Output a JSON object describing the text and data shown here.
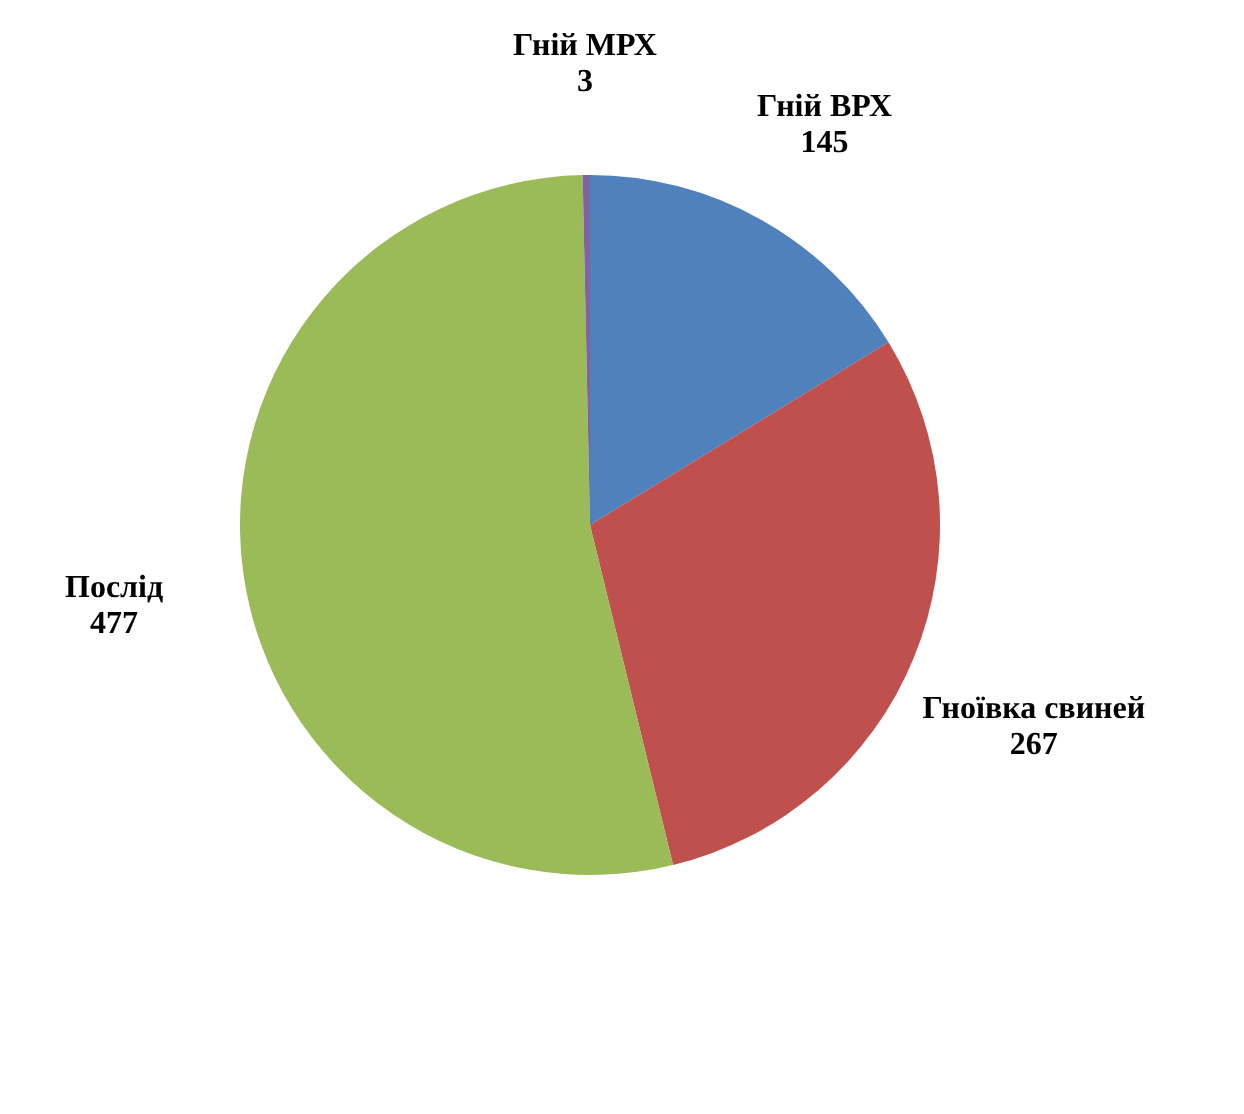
{
  "chart_data": {
    "type": "pie",
    "categories": [
      "Гній ВРХ",
      "Гноївка свиней",
      "Послід",
      "Гній МРХ"
    ],
    "values": [
      145,
      267,
      477,
      3
    ],
    "colors": [
      "#4f81bd",
      "#c0504d",
      "#9bbb59",
      "#8064a2"
    ],
    "data_labels": true,
    "legend": false
  }
}
